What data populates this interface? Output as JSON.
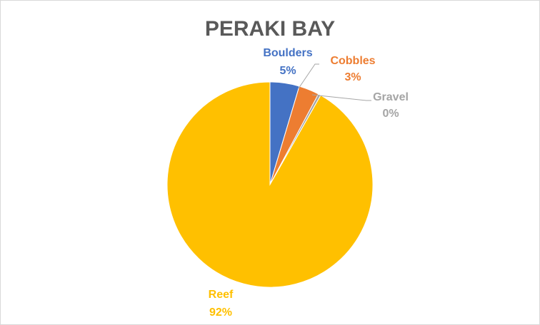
{
  "chart_data": {
    "type": "pie",
    "title": "PERAKI BAY",
    "categories": [
      "Boulders",
      "Cobbles",
      "Gravel",
      "Reef"
    ],
    "values": [
      4.6,
      3.2,
      0.4,
      91.8
    ],
    "data_labels": [
      "5%",
      "3%",
      "0%",
      "92%"
    ],
    "colors": [
      "#4472C4",
      "#ED7D31",
      "#A5A5A5",
      "#FFC000"
    ],
    "legend": "none",
    "start_angle_deg": 0,
    "direction": "clockwise"
  }
}
